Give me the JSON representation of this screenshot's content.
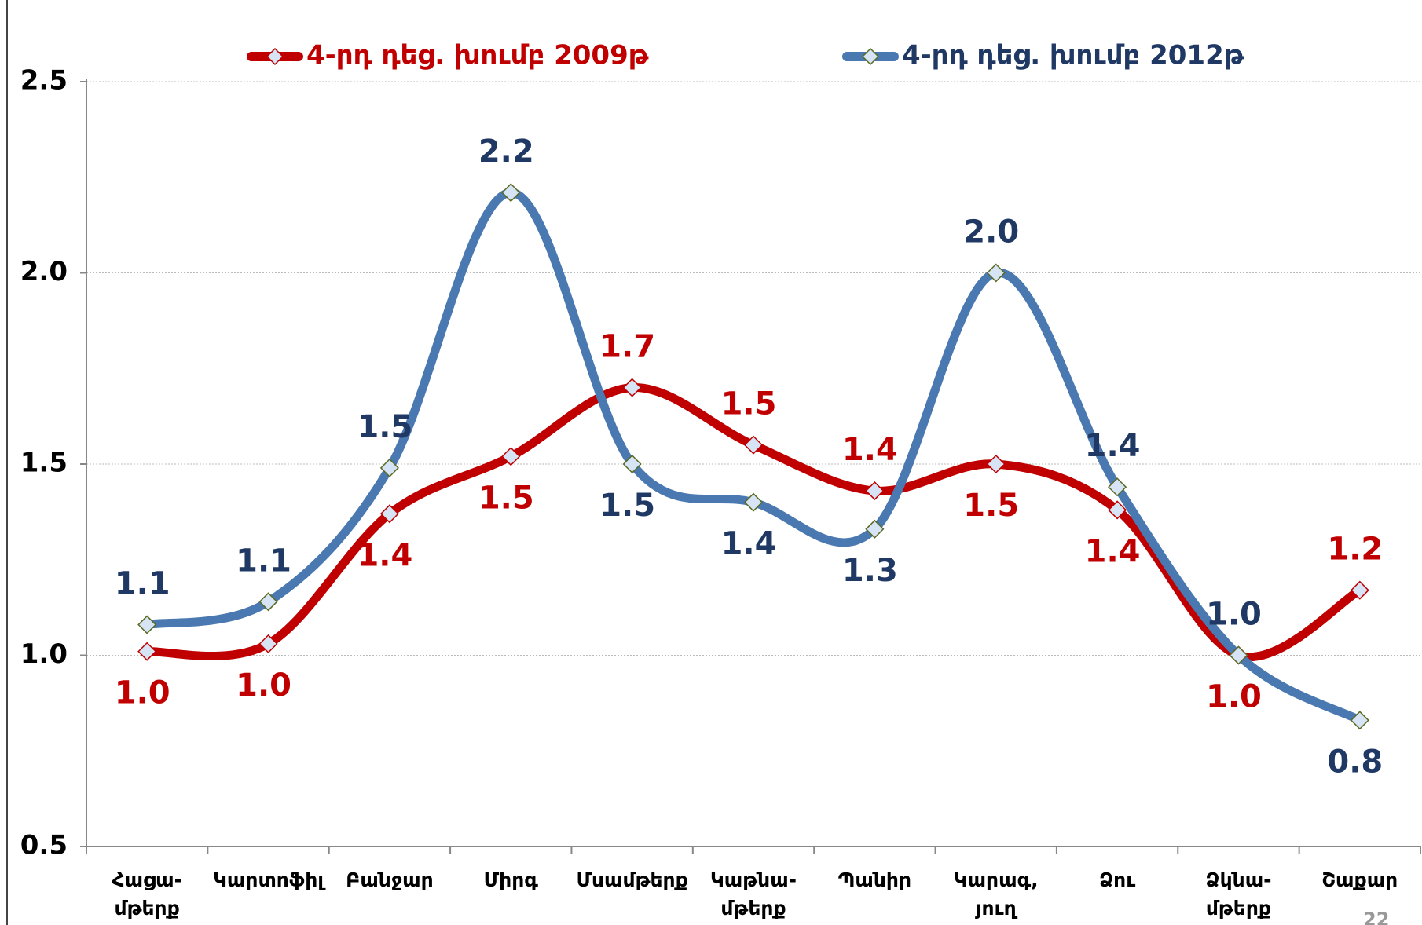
{
  "chart_data": {
    "type": "line",
    "categories": [
      "Հացա-\nմթերք",
      "Կարտոֆիլ",
      "Բանջար",
      "Միրգ",
      "Մսամթերք",
      "Կաթնա-\nմթերք",
      "Պանիր",
      "Կարագ,\nյուղ",
      "Ձու",
      "Ձկնա-\nմթերք",
      "Շաքար"
    ],
    "series": [
      {
        "name": "4-րդ դեց. խումբ 2009թ",
        "color": "#c00000",
        "values": [
          1.01,
          1.03,
          1.37,
          1.52,
          1.7,
          1.55,
          1.43,
          1.5,
          1.38,
          1.0,
          1.17
        ],
        "value_labels": [
          "1.0",
          "1.0",
          "1.4",
          "1.5",
          "1.7",
          "1.5",
          "1.4",
          "1.5",
          "1.4",
          "1.0",
          "1.2"
        ]
      },
      {
        "name": "4-րդ դեց. խումբ 2012թ",
        "color": "#4a78b0",
        "values": [
          1.08,
          1.14,
          1.49,
          2.21,
          1.5,
          1.4,
          1.33,
          2.0,
          1.44,
          1.0,
          0.83
        ],
        "value_labels": [
          "1.1",
          "1.1",
          "1.5",
          "2.2",
          "1.5",
          "1.4",
          "1.3",
          "2.0",
          "1.4",
          "1.0",
          "0.8"
        ]
      }
    ],
    "ylim": [
      0.5,
      2.5
    ],
    "yticks": [
      {
        "value": 0.5,
        "label": "0.5"
      },
      {
        "value": 1.0,
        "label": "1.0"
      },
      {
        "value": 1.5,
        "label": "1.5"
      },
      {
        "value": 2.0,
        "label": "2.0"
      },
      {
        "value": 2.5,
        "label": "2.5"
      }
    ],
    "grid": true,
    "legend": "top",
    "page_number": "22"
  }
}
